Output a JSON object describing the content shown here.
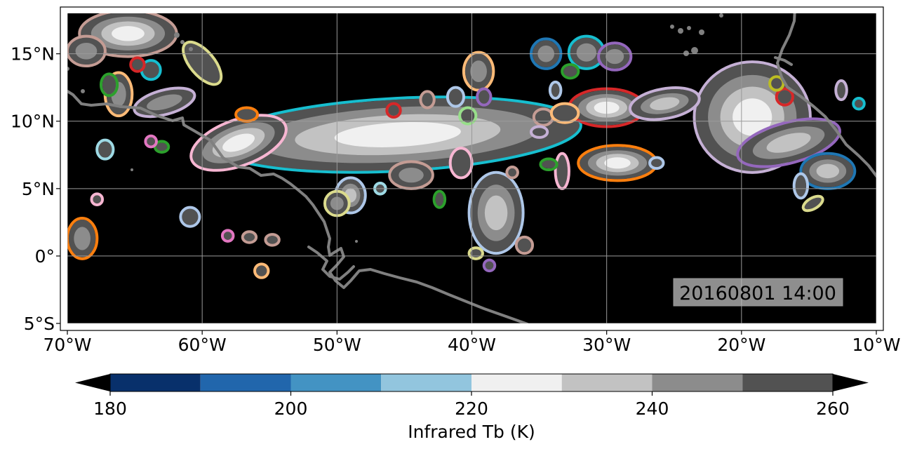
{
  "map": {
    "projection": "PlateCarree",
    "lon_range": [
      -70,
      -10
    ],
    "lat_range": [
      -5,
      18
    ],
    "background_color": "#000000",
    "coastline_color": "#808080",
    "gridlines": true,
    "x_ticks": [
      {
        "lon": -70,
        "label": "70°W"
      },
      {
        "lon": -60,
        "label": "60°W"
      },
      {
        "lon": -50,
        "label": "50°W"
      },
      {
        "lon": -40,
        "label": "40°W"
      },
      {
        "lon": -30,
        "label": "30°W"
      },
      {
        "lon": -20,
        "label": "20°W"
      },
      {
        "lon": -10,
        "label": "10°W"
      }
    ],
    "y_ticks": [
      {
        "lat": -5,
        "label": "5°S"
      },
      {
        "lat": 0,
        "label": "0°"
      },
      {
        "lat": 5,
        "label": "5°N"
      },
      {
        "lat": 10,
        "label": "10°N"
      },
      {
        "lat": 15,
        "label": "15°N"
      }
    ],
    "timestamp": "20160801 14:00"
  },
  "colorbar": {
    "label": "Infrared Tb (K)",
    "min": 180,
    "max": 260,
    "step": 10,
    "extend": "both",
    "tick_labels": [
      {
        "value": 180,
        "label": "180"
      },
      {
        "value": 200,
        "label": "200"
      },
      {
        "value": 220,
        "label": "220"
      },
      {
        "value": 240,
        "label": "240"
      },
      {
        "value": 260,
        "label": "260"
      }
    ],
    "colors": [
      "#08306b",
      "#2166ac",
      "#4393c3",
      "#92c5de",
      "#f0f0f0",
      "#c2c2c2",
      "#8c8c8c",
      "#525252"
    ],
    "under_color": "#000000",
    "over_color": "#000000"
  },
  "storms": [
    {
      "lon": -45.5,
      "lat": 9.0,
      "rx": 13.5,
      "ry": 2.6,
      "rot": -3,
      "core": 4,
      "outline": "#17becf"
    },
    {
      "lon": -19.2,
      "lat": 10.3,
      "rx": 4.2,
      "ry": 4.0,
      "rot": 0,
      "core": 4,
      "outline": "#c5b0d5"
    },
    {
      "lon": -16.5,
      "lat": 8.4,
      "rx": 3.8,
      "ry": 1.4,
      "rot": -15,
      "core": 5,
      "outline": "#9467bd"
    },
    {
      "lon": -13.6,
      "lat": 6.3,
      "rx": 1.9,
      "ry": 1.2,
      "rot": 0,
      "core": 5,
      "outline": "#1f77b4"
    },
    {
      "lon": -30.0,
      "lat": 11.0,
      "rx": 2.7,
      "ry": 1.3,
      "rot": 0,
      "core": 4,
      "outline": "#d62728"
    },
    {
      "lon": -25.7,
      "lat": 11.3,
      "rx": 2.5,
      "ry": 1.0,
      "rot": -10,
      "core": 5,
      "outline": "#c5b0d5"
    },
    {
      "lon": -29.2,
      "lat": 6.9,
      "rx": 2.8,
      "ry": 1.2,
      "rot": 0,
      "core": 4,
      "outline": "#ff7f0e"
    },
    {
      "lon": -38.2,
      "lat": 3.2,
      "rx": 1.9,
      "ry": 2.9,
      "rot": 0,
      "core": 5,
      "outline": "#aec7e8"
    },
    {
      "lon": -57.3,
      "lat": 8.4,
      "rx": 3.6,
      "ry": 1.6,
      "rot": -20,
      "core": 4,
      "outline": "#f7b6d2"
    },
    {
      "lon": -65.5,
      "lat": 16.5,
      "rx": 3.5,
      "ry": 1.6,
      "rot": 0,
      "core": 4,
      "outline": "#c49c94"
    },
    {
      "lon": -68.6,
      "lat": 15.2,
      "rx": 1.3,
      "ry": 1.0,
      "rot": 0,
      "core": 6,
      "outline": "#c49c94"
    },
    {
      "lon": -62.8,
      "lat": 11.4,
      "rx": 2.2,
      "ry": 0.8,
      "rot": -15,
      "core": 6,
      "outline": "#c5b0d5"
    },
    {
      "lon": -66.2,
      "lat": 12.0,
      "rx": 0.9,
      "ry": 1.5,
      "rot": 0,
      "core": 6,
      "outline": "#ffbb78"
    },
    {
      "lon": -60.0,
      "lat": 14.3,
      "rx": 0.8,
      "ry": 1.8,
      "rot": -40,
      "core": 7,
      "outline": "#dbdb8d"
    },
    {
      "lon": -44.5,
      "lat": 6.0,
      "rx": 1.5,
      "ry": 0.9,
      "rot": 0,
      "core": 6,
      "outline": "#c49c94"
    },
    {
      "lon": -49.0,
      "lat": 4.5,
      "rx": 1.0,
      "ry": 1.2,
      "rot": 0,
      "core": 5,
      "outline": "#aec7e8"
    },
    {
      "lon": -50.0,
      "lat": 3.9,
      "rx": 0.8,
      "ry": 0.8,
      "rot": 0,
      "core": 6,
      "outline": "#dbdb8d"
    },
    {
      "lon": -31.5,
      "lat": 15.1,
      "rx": 1.2,
      "ry": 1.1,
      "rot": 0,
      "core": 6,
      "outline": "#17becf"
    },
    {
      "lon": -29.4,
      "lat": 14.8,
      "rx": 1.1,
      "ry": 0.9,
      "rot": 0,
      "core": 6,
      "outline": "#9467bd"
    },
    {
      "lon": -34.5,
      "lat": 15.0,
      "rx": 1.0,
      "ry": 1.0,
      "rot": 0,
      "core": 6,
      "outline": "#1f77b4"
    },
    {
      "lon": -39.5,
      "lat": 13.7,
      "rx": 1.0,
      "ry": 1.3,
      "rot": 0,
      "core": 6,
      "outline": "#ffbb78"
    },
    {
      "lon": -68.9,
      "lat": 1.3,
      "rx": 1.0,
      "ry": 1.4,
      "rot": 0,
      "core": 6,
      "outline": "#ff7f0e"
    },
    {
      "lon": -40.8,
      "lat": 6.9,
      "rx": 0.7,
      "ry": 1.0,
      "rot": 0,
      "core": 7,
      "outline": "#f7b6d2"
    },
    {
      "lon": -33.3,
      "lat": 6.3,
      "rx": 0.4,
      "ry": 1.2,
      "rot": 0,
      "core": 7,
      "outline": "#f7b6d2"
    },
    {
      "lon": -34.7,
      "lat": 10.3,
      "rx": 0.6,
      "ry": 0.5,
      "rot": 0,
      "core": 7,
      "outline": "#c49c94"
    },
    {
      "lon": -33.1,
      "lat": 10.6,
      "rx": 0.9,
      "ry": 0.6,
      "rot": 0,
      "core": 7,
      "outline": "#ffbb78"
    },
    {
      "lon": -56.7,
      "lat": 10.5,
      "rx": 0.7,
      "ry": 0.4,
      "rot": 0,
      "core": 7,
      "outline": "#ff7f0e"
    },
    {
      "lon": -67.2,
      "lat": 7.9,
      "rx": 0.5,
      "ry": 0.6,
      "rot": 0,
      "core": 7,
      "outline": "#9edae5"
    },
    {
      "lon": -60.9,
      "lat": 2.9,
      "rx": 0.6,
      "ry": 0.6,
      "rot": 0,
      "core": 7,
      "outline": "#aec7e8"
    },
    {
      "lon": -36.1,
      "lat": 0.8,
      "rx": 0.5,
      "ry": 0.5,
      "rot": 0,
      "core": 7,
      "outline": "#c49c94"
    },
    {
      "lon": -54.8,
      "lat": 1.2,
      "rx": 0.4,
      "ry": 0.3,
      "rot": 0,
      "core": 7,
      "outline": "#c49c94"
    },
    {
      "lon": -16.8,
      "lat": 11.8,
      "rx": 0.5,
      "ry": 0.5,
      "rot": 0,
      "core": 7,
      "outline": "#d62728"
    },
    {
      "lon": -11.3,
      "lat": 11.3,
      "rx": 0.3,
      "ry": 0.3,
      "rot": 0,
      "core": 7,
      "outline": "#17becf"
    },
    {
      "lon": -66.9,
      "lat": 12.7,
      "rx": 0.5,
      "ry": 0.7,
      "rot": 0,
      "core": 7,
      "outline": "#2ca02c"
    },
    {
      "lon": -63.0,
      "lat": 8.1,
      "rx": 0.4,
      "ry": 0.3,
      "rot": 0,
      "core": 7,
      "outline": "#2ca02c"
    },
    {
      "lon": -32.7,
      "lat": 13.7,
      "rx": 0.5,
      "ry": 0.4,
      "rot": 0,
      "core": 7,
      "outline": "#2ca02c"
    },
    {
      "lon": -63.8,
      "lat": 13.8,
      "rx": 0.6,
      "ry": 0.6,
      "rot": 0,
      "core": 7,
      "outline": "#17becf"
    },
    {
      "lon": -64.8,
      "lat": 14.2,
      "rx": 0.4,
      "ry": 0.4,
      "rot": 0,
      "core": 7,
      "outline": "#d62728"
    },
    {
      "lon": -40.3,
      "lat": 10.4,
      "rx": 0.5,
      "ry": 0.5,
      "rot": 0,
      "core": 7,
      "outline": "#98df8a"
    },
    {
      "lon": -45.8,
      "lat": 10.8,
      "rx": 0.4,
      "ry": 0.4,
      "rot": 0,
      "core": 7,
      "outline": "#d62728"
    },
    {
      "lon": -39.1,
      "lat": 11.8,
      "rx": 0.4,
      "ry": 0.5,
      "rot": 0,
      "core": 7,
      "outline": "#9467bd"
    },
    {
      "lon": -37.0,
      "lat": 6.2,
      "rx": 0.3,
      "ry": 0.3,
      "rot": 0,
      "core": 7,
      "outline": "#c49c94"
    },
    {
      "lon": -34.3,
      "lat": 6.8,
      "rx": 0.5,
      "ry": 0.3,
      "rot": 0,
      "core": 7,
      "outline": "#2ca02c"
    },
    {
      "lon": -41.2,
      "lat": 11.8,
      "rx": 0.5,
      "ry": 0.6,
      "rot": 0,
      "core": 7,
      "outline": "#aec7e8"
    },
    {
      "lon": -43.3,
      "lat": 11.6,
      "rx": 0.4,
      "ry": 0.5,
      "rot": 0,
      "core": 7,
      "outline": "#c49c94"
    },
    {
      "lon": -42.4,
      "lat": 4.2,
      "rx": 0.3,
      "ry": 0.5,
      "rot": 0,
      "core": 7,
      "outline": "#2ca02c"
    },
    {
      "lon": -35.0,
      "lat": 9.2,
      "rx": 0.5,
      "ry": 0.3,
      "rot": 0,
      "core": 7,
      "outline": "#c5b0d5"
    },
    {
      "lon": -33.8,
      "lat": 12.3,
      "rx": 0.3,
      "ry": 0.5,
      "rot": 0,
      "core": 7,
      "outline": "#aec7e8"
    },
    {
      "lon": -26.3,
      "lat": 6.9,
      "rx": 0.4,
      "ry": 0.3,
      "rot": 0,
      "core": 7,
      "outline": "#aec7e8"
    },
    {
      "lon": -17.4,
      "lat": 12.8,
      "rx": 0.4,
      "ry": 0.4,
      "rot": 0,
      "core": 7,
      "outline": "#bcbd22"
    },
    {
      "lon": -15.6,
      "lat": 5.2,
      "rx": 0.4,
      "ry": 0.8,
      "rot": 0,
      "core": 7,
      "outline": "#aec7e8"
    },
    {
      "lon": -14.7,
      "lat": 3.9,
      "rx": 0.7,
      "ry": 0.3,
      "rot": -30,
      "core": 7,
      "outline": "#dbdb8d"
    },
    {
      "lon": -12.6,
      "lat": 12.3,
      "rx": 0.3,
      "ry": 0.6,
      "rot": 0,
      "core": 7,
      "outline": "#c5b0d5"
    },
    {
      "lon": -67.8,
      "lat": 4.2,
      "rx": 0.3,
      "ry": 0.3,
      "rot": 0,
      "core": 7,
      "outline": "#f7b6d2"
    },
    {
      "lon": -58.1,
      "lat": 1.5,
      "rx": 0.3,
      "ry": 0.3,
      "rot": 0,
      "core": 7,
      "outline": "#e377c2"
    },
    {
      "lon": -56.5,
      "lat": 1.4,
      "rx": 0.4,
      "ry": 0.3,
      "rot": 0,
      "core": 7,
      "outline": "#c49c94"
    },
    {
      "lon": -55.6,
      "lat": -1.1,
      "rx": 0.4,
      "ry": 0.4,
      "rot": 0,
      "core": 7,
      "outline": "#ffbb78"
    },
    {
      "lon": -39.7,
      "lat": 0.2,
      "rx": 0.4,
      "ry": 0.3,
      "rot": 0,
      "core": 7,
      "outline": "#dbdb8d"
    },
    {
      "lon": -38.7,
      "lat": -0.7,
      "rx": 0.3,
      "ry": 0.3,
      "rot": 0,
      "core": 7,
      "outline": "#9467bd"
    },
    {
      "lon": -46.8,
      "lat": 5.0,
      "rx": 0.3,
      "ry": 0.3,
      "rot": 0,
      "core": 7,
      "outline": "#9edae5"
    },
    {
      "lon": -63.8,
      "lat": 8.5,
      "rx": 0.3,
      "ry": 0.3,
      "rot": 0,
      "core": 7,
      "outline": "#e377c2"
    }
  ]
}
